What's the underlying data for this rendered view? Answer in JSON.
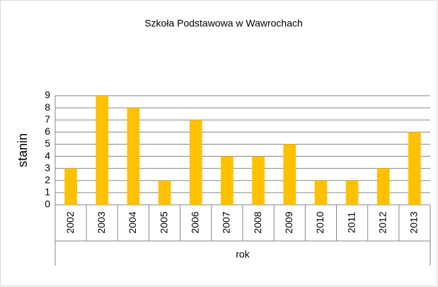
{
  "chart_data": {
    "type": "bar",
    "title": "Szkoła Podstawowa w Wawrochach",
    "x_label": "rok",
    "y_label": "stanin",
    "categories": [
      "2002",
      "2003",
      "2004",
      "2005",
      "2006",
      "2007",
      "2008",
      "2009",
      "2010",
      "2011",
      "2012",
      "2013"
    ],
    "values": [
      3,
      9,
      8,
      2,
      7,
      4,
      4,
      5,
      2,
      2,
      3,
      6
    ],
    "color": "#ffc000",
    "ylim": [
      0,
      9
    ],
    "yticks": [
      0,
      1,
      2,
      3,
      4,
      5,
      6,
      7,
      8,
      9
    ],
    "grid": true
  }
}
